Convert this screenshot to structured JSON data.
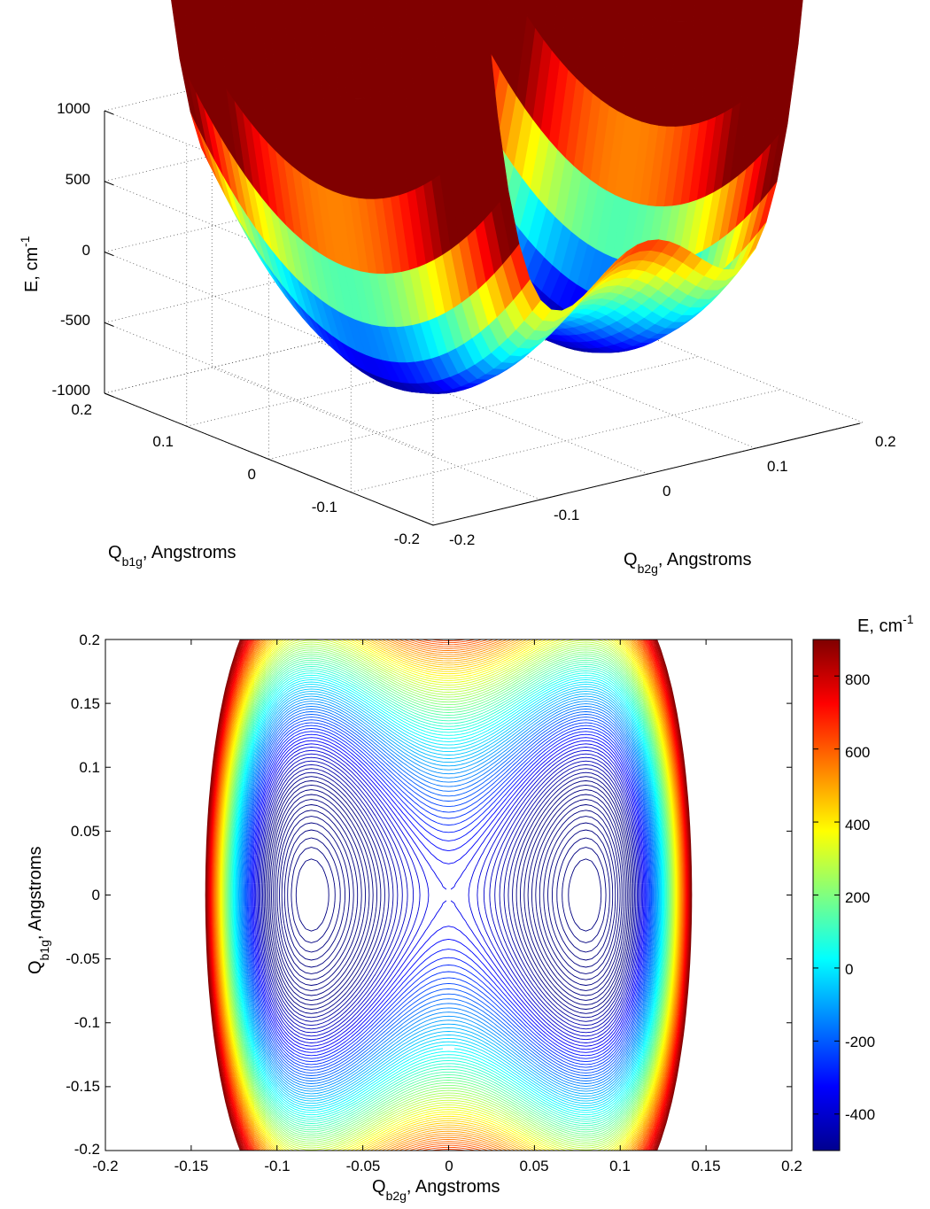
{
  "chart_data": [
    {
      "type": "surface",
      "zlabel": "E, cm",
      "zlabel_sup": "-1",
      "xlabel": "Q",
      "xlabel_sub": "b1g",
      "xlabel_rest": ", Angstroms",
      "ylabel": "Q",
      "ylabel_sub": "b2g",
      "ylabel_rest": ", Angstroms",
      "zlim": [
        -1000,
        1000
      ],
      "zticks": [
        "1000",
        "500",
        "0",
        "-500",
        "-1000"
      ],
      "xlim": [
        -0.2,
        0.2
      ],
      "xticks": [
        "0.2",
        "0.1",
        "0",
        "-0.1",
        "-0.2"
      ],
      "ylim": [
        -0.2,
        0.2
      ],
      "yticks": [
        "-0.2",
        "-0.1",
        "0",
        "0.1",
        "0.2"
      ],
      "grid": true,
      "colormap": "jet",
      "surface_model": {
        "description_free": true,
        "minima_at_Qb2g": [
          -0.08,
          0.08
        ],
        "minimum_energy": -700,
        "barrier_at_Qb2g_0": -350,
        "corner_energy_max": 900
      }
    },
    {
      "type": "contour",
      "xlabel": "Q",
      "xlabel_sub": "b2g",
      "xlabel_rest": ", Angstroms",
      "ylabel": "Q",
      "ylabel_sub": "b1g",
      "ylabel_rest": ", Angstroms",
      "xlim": [
        -0.2,
        0.2
      ],
      "ylim": [
        -0.2,
        0.2
      ],
      "xticks": [
        "-0.2",
        "-0.15",
        "-0.1",
        "-0.05",
        "0",
        "0.05",
        "0.1",
        "0.15",
        "0.2"
      ],
      "yticks": [
        "0.2",
        "0.15",
        "0.1",
        "0.05",
        "0",
        "-0.05",
        "-0.1",
        "-0.15",
        "-0.2"
      ],
      "colorbar": {
        "title": "E, cm",
        "title_sup": "-1",
        "range": [
          -500,
          900
        ],
        "ticks": [
          "800",
          "600",
          "400",
          "200",
          "0",
          "-200",
          "-400"
        ],
        "colormap": "jet"
      },
      "levels": {
        "min": -680,
        "max": 900,
        "step": 15
      }
    }
  ]
}
